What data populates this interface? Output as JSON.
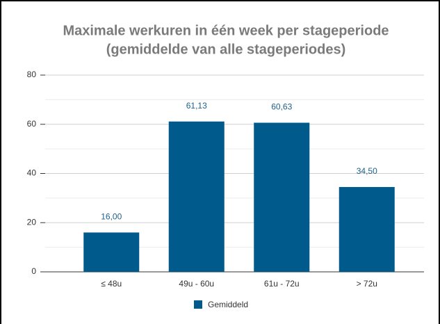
{
  "chart_data": {
    "type": "bar",
    "title": [
      "Maximale werkuren in één week per stageperiode",
      "(gemiddelde van alle stageperiodes)"
    ],
    "categories": [
      "≤ 48u",
      "49u - 60u",
      "61u - 72u",
      "> 72u"
    ],
    "series": [
      {
        "name": "Gemiddeld",
        "color": "#015a8c",
        "values": [
          16.0,
          61.13,
          60.63,
          34.5
        ],
        "value_labels": [
          "16,00",
          "61,13",
          "60,63",
          "34,50"
        ]
      }
    ],
    "ylim": [
      0,
      80
    ],
    "yticks": [
      0,
      20,
      40,
      60,
      80
    ],
    "minor_yticks": [
      10,
      30,
      50,
      70
    ],
    "grid": true,
    "legend": "bottom"
  }
}
